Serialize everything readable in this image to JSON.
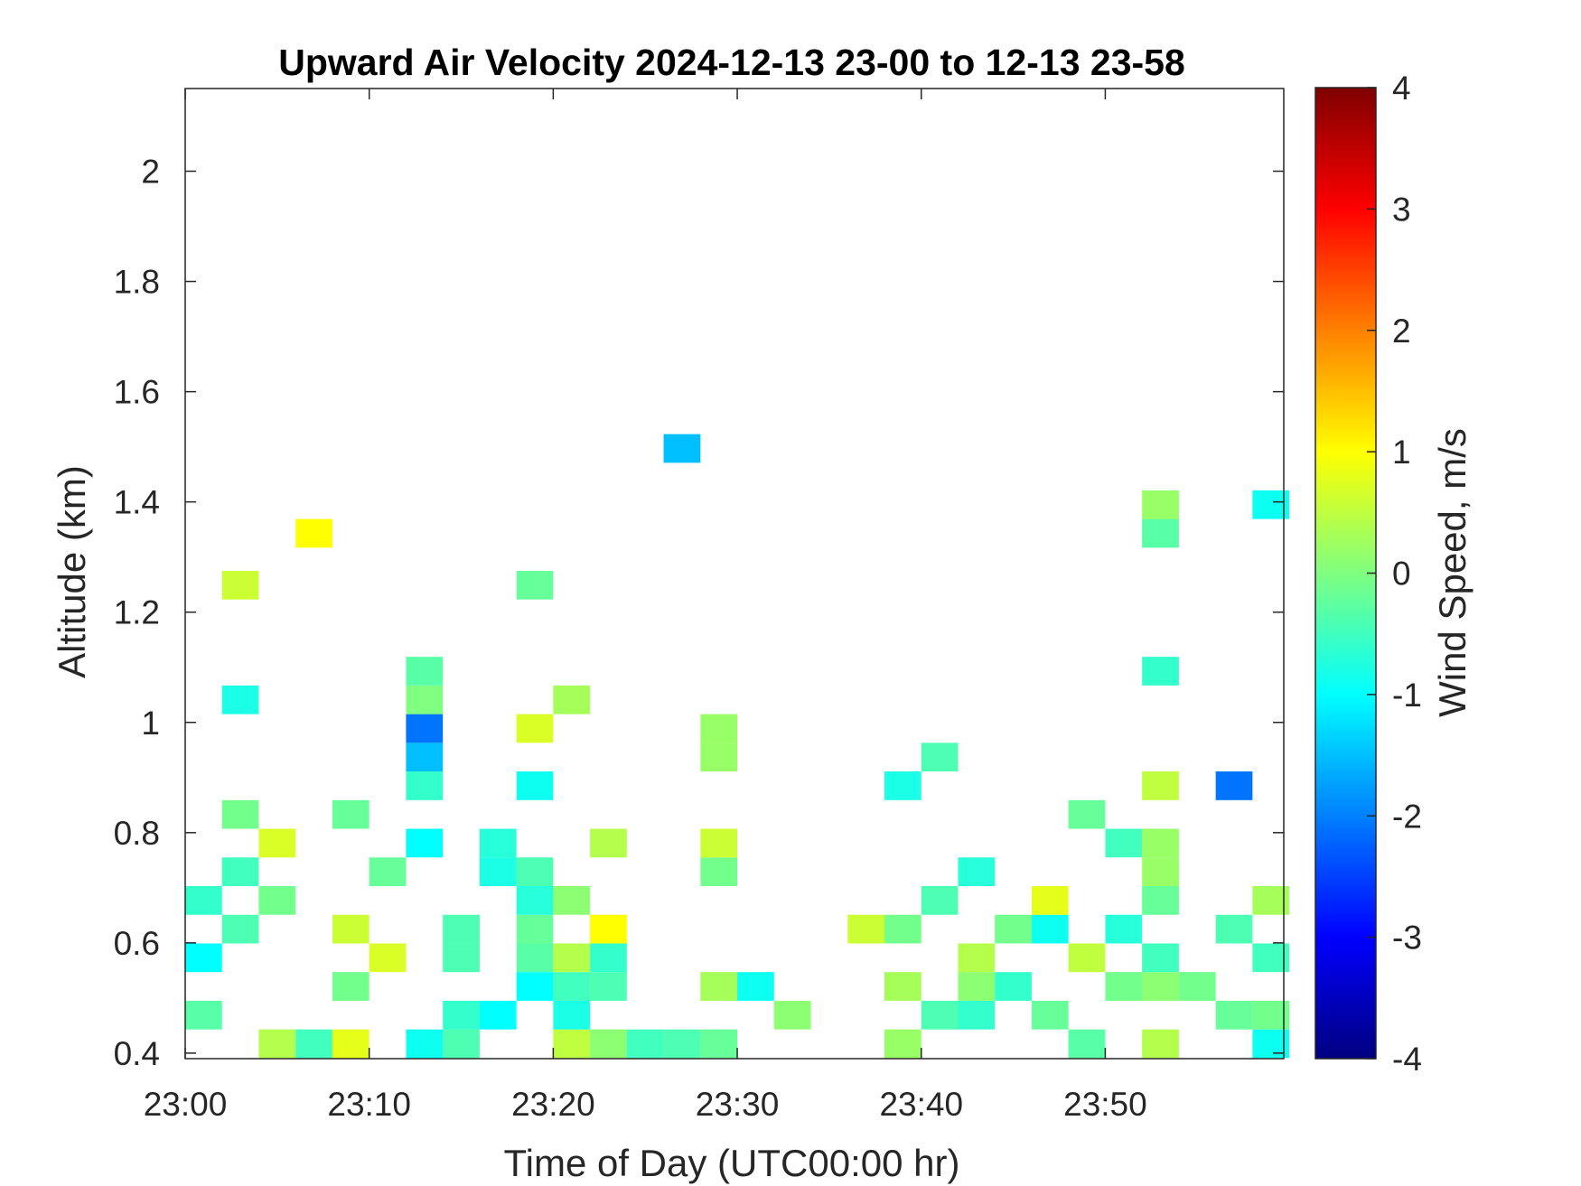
{
  "chart_data": {
    "type": "heatmap",
    "title": "Upward Air Velocity 2024-12-13 23-00 to 12-13 23-58",
    "xlabel": "Time of Day (UTC00:00 hr)",
    "ylabel": "Altitude (km)",
    "colorbar_label": "Wind Speed, m/s",
    "colormap": "jet",
    "x_ticks": [
      "23:00",
      "23:10",
      "23:20",
      "23:30",
      "23:40",
      "23:50"
    ],
    "x_tick_minutes": [
      0,
      10,
      20,
      30,
      40,
      50
    ],
    "xlim_minutes": [
      0,
      59.7
    ],
    "y_ticks": [
      "0.4",
      "0.6",
      "0.8",
      "1",
      "1.2",
      "1.4",
      "1.6",
      "1.8",
      "2"
    ],
    "y_tick_values": [
      0.4,
      0.6,
      0.8,
      1.0,
      1.2,
      1.4,
      1.6,
      1.8,
      2.0
    ],
    "ylim": [
      0.39,
      2.15
    ],
    "clim": [
      -4,
      4
    ],
    "colorbar_ticks": [
      "4",
      "3",
      "2",
      "1",
      "0",
      "-1",
      "-2",
      "-3",
      "-4"
    ],
    "colorbar_tick_values": [
      4,
      3,
      2,
      1,
      0,
      -1,
      -2,
      -3,
      -4
    ],
    "cell_width_min": 2,
    "cell_height_km": 0.052,
    "cells": [
      {
        "t": 1,
        "alt": 0.469,
        "v": -0.3
      },
      {
        "t": 1,
        "alt": 0.573,
        "v": -1.0
      },
      {
        "t": 1,
        "alt": 0.677,
        "v": -0.6
      },
      {
        "t": 3,
        "alt": 0.625,
        "v": -0.4
      },
      {
        "t": 3,
        "alt": 0.729,
        "v": -0.5
      },
      {
        "t": 3,
        "alt": 0.833,
        "v": -0.1
      },
      {
        "t": 3,
        "alt": 1.041,
        "v": -0.8
      },
      {
        "t": 3,
        "alt": 1.249,
        "v": 0.6
      },
      {
        "t": 5,
        "alt": 0.417,
        "v": 0.4
      },
      {
        "t": 5,
        "alt": 0.677,
        "v": -0.1
      },
      {
        "t": 5,
        "alt": 0.781,
        "v": 0.7
      },
      {
        "t": 7,
        "alt": 0.417,
        "v": -0.5
      },
      {
        "t": 7,
        "alt": 1.343,
        "v": 1.0
      },
      {
        "t": 9,
        "alt": 0.417,
        "v": 0.8
      },
      {
        "t": 9,
        "alt": 0.521,
        "v": -0.1
      },
      {
        "t": 9,
        "alt": 0.625,
        "v": 0.6
      },
      {
        "t": 9,
        "alt": 0.833,
        "v": -0.2
      },
      {
        "t": 11,
        "alt": 0.573,
        "v": 0.7
      },
      {
        "t": 11,
        "alt": 0.729,
        "v": -0.2
      },
      {
        "t": 13,
        "alt": 0.417,
        "v": -0.9
      },
      {
        "t": 13,
        "alt": 0.781,
        "v": -1.0
      },
      {
        "t": 13,
        "alt": 0.885,
        "v": -0.6
      },
      {
        "t": 13,
        "alt": 0.937,
        "v": -1.5
      },
      {
        "t": 13,
        "alt": 0.989,
        "v": -2.1
      },
      {
        "t": 13,
        "alt": 1.041,
        "v": 0.0
      },
      {
        "t": 13,
        "alt": 1.093,
        "v": -0.3
      },
      {
        "t": 15,
        "alt": 0.417,
        "v": -0.4
      },
      {
        "t": 15,
        "alt": 0.469,
        "v": -0.6
      },
      {
        "t": 15,
        "alt": 0.573,
        "v": -0.4
      },
      {
        "t": 15,
        "alt": 0.625,
        "v": -0.4
      },
      {
        "t": 17,
        "alt": 0.469,
        "v": -1.0
      },
      {
        "t": 17,
        "alt": 0.729,
        "v": -0.8
      },
      {
        "t": 17,
        "alt": 0.781,
        "v": -0.7
      },
      {
        "t": 19,
        "alt": 0.521,
        "v": -1.0
      },
      {
        "t": 19,
        "alt": 0.573,
        "v": -0.3
      },
      {
        "t": 19,
        "alt": 0.625,
        "v": -0.2
      },
      {
        "t": 19,
        "alt": 0.677,
        "v": -0.7
      },
      {
        "t": 19,
        "alt": 0.729,
        "v": -0.4
      },
      {
        "t": 19,
        "alt": 0.885,
        "v": -0.9
      },
      {
        "t": 19,
        "alt": 0.989,
        "v": 0.7
      },
      {
        "t": 19,
        "alt": 1.249,
        "v": -0.2
      },
      {
        "t": 21,
        "alt": 0.417,
        "v": 0.5
      },
      {
        "t": 21,
        "alt": 0.469,
        "v": -0.8
      },
      {
        "t": 21,
        "alt": 0.521,
        "v": -0.5
      },
      {
        "t": 21,
        "alt": 0.573,
        "v": 0.4
      },
      {
        "t": 21,
        "alt": 0.677,
        "v": 0.1
      },
      {
        "t": 21,
        "alt": 1.041,
        "v": 0.3
      },
      {
        "t": 23,
        "alt": 0.417,
        "v": 0.1
      },
      {
        "t": 23,
        "alt": 0.521,
        "v": -0.4
      },
      {
        "t": 23,
        "alt": 0.573,
        "v": -0.6
      },
      {
        "t": 23,
        "alt": 0.625,
        "v": 1.0
      },
      {
        "t": 23,
        "alt": 0.781,
        "v": 0.4
      },
      {
        "t": 25,
        "alt": 0.417,
        "v": -0.5
      },
      {
        "t": 27,
        "alt": 0.417,
        "v": -0.4
      },
      {
        "t": 27,
        "alt": 1.497,
        "v": -1.5
      },
      {
        "t": 29,
        "alt": 0.417,
        "v": -0.2
      },
      {
        "t": 29,
        "alt": 0.521,
        "v": 0.3
      },
      {
        "t": 29,
        "alt": 0.729,
        "v": -0.1
      },
      {
        "t": 29,
        "alt": 0.781,
        "v": 0.6
      },
      {
        "t": 29,
        "alt": 0.937,
        "v": 0.2
      },
      {
        "t": 29,
        "alt": 0.989,
        "v": 0.2
      },
      {
        "t": 31,
        "alt": 0.521,
        "v": -0.9
      },
      {
        "t": 33,
        "alt": 0.469,
        "v": 0.1
      },
      {
        "t": 37,
        "alt": 0.625,
        "v": 0.6
      },
      {
        "t": 39,
        "alt": 0.417,
        "v": 0.2
      },
      {
        "t": 39,
        "alt": 0.521,
        "v": 0.3
      },
      {
        "t": 39,
        "alt": 0.625,
        "v": -0.1
      },
      {
        "t": 39,
        "alt": 0.885,
        "v": -0.8
      },
      {
        "t": 41,
        "alt": 0.469,
        "v": -0.4
      },
      {
        "t": 41,
        "alt": 0.677,
        "v": -0.4
      },
      {
        "t": 41,
        "alt": 0.937,
        "v": -0.4
      },
      {
        "t": 43,
        "alt": 0.469,
        "v": -0.6
      },
      {
        "t": 43,
        "alt": 0.521,
        "v": 0.1
      },
      {
        "t": 43,
        "alt": 0.573,
        "v": 0.4
      },
      {
        "t": 43,
        "alt": 0.729,
        "v": -0.7
      },
      {
        "t": 45,
        "alt": 0.521,
        "v": -0.6
      },
      {
        "t": 45,
        "alt": 0.625,
        "v": -0.1
      },
      {
        "t": 47,
        "alt": 0.469,
        "v": -0.2
      },
      {
        "t": 47,
        "alt": 0.625,
        "v": -0.9
      },
      {
        "t": 47,
        "alt": 0.677,
        "v": 0.8
      },
      {
        "t": 49,
        "alt": 0.417,
        "v": -0.3
      },
      {
        "t": 49,
        "alt": 0.573,
        "v": 0.5
      },
      {
        "t": 49,
        "alt": 0.833,
        "v": -0.2
      },
      {
        "t": 51,
        "alt": 0.521,
        "v": -0.1
      },
      {
        "t": 51,
        "alt": 0.625,
        "v": -0.7
      },
      {
        "t": 51,
        "alt": 0.781,
        "v": -0.5
      },
      {
        "t": 53,
        "alt": 0.417,
        "v": 0.4
      },
      {
        "t": 53,
        "alt": 0.521,
        "v": 0.1
      },
      {
        "t": 53,
        "alt": 0.573,
        "v": -0.5
      },
      {
        "t": 53,
        "alt": 0.677,
        "v": -0.2
      },
      {
        "t": 53,
        "alt": 0.729,
        "v": 0.2
      },
      {
        "t": 53,
        "alt": 0.781,
        "v": 0.2
      },
      {
        "t": 53,
        "alt": 0.885,
        "v": 0.5
      },
      {
        "t": 53,
        "alt": 1.093,
        "v": -0.6
      },
      {
        "t": 53,
        "alt": 1.343,
        "v": -0.3
      },
      {
        "t": 53,
        "alt": 1.395,
        "v": 0.2
      },
      {
        "t": 55,
        "alt": 0.521,
        "v": -0.1
      },
      {
        "t": 57,
        "alt": 0.469,
        "v": -0.2
      },
      {
        "t": 57,
        "alt": 0.625,
        "v": -0.4
      },
      {
        "t": 57,
        "alt": 0.885,
        "v": -2.1
      },
      {
        "t": 59,
        "alt": 0.417,
        "v": -0.9
      },
      {
        "t": 59,
        "alt": 0.469,
        "v": -0.1
      },
      {
        "t": 59,
        "alt": 0.573,
        "v": -0.5
      },
      {
        "t": 59,
        "alt": 0.677,
        "v": 0.3
      },
      {
        "t": 59,
        "alt": 1.395,
        "v": -0.9
      }
    ]
  }
}
